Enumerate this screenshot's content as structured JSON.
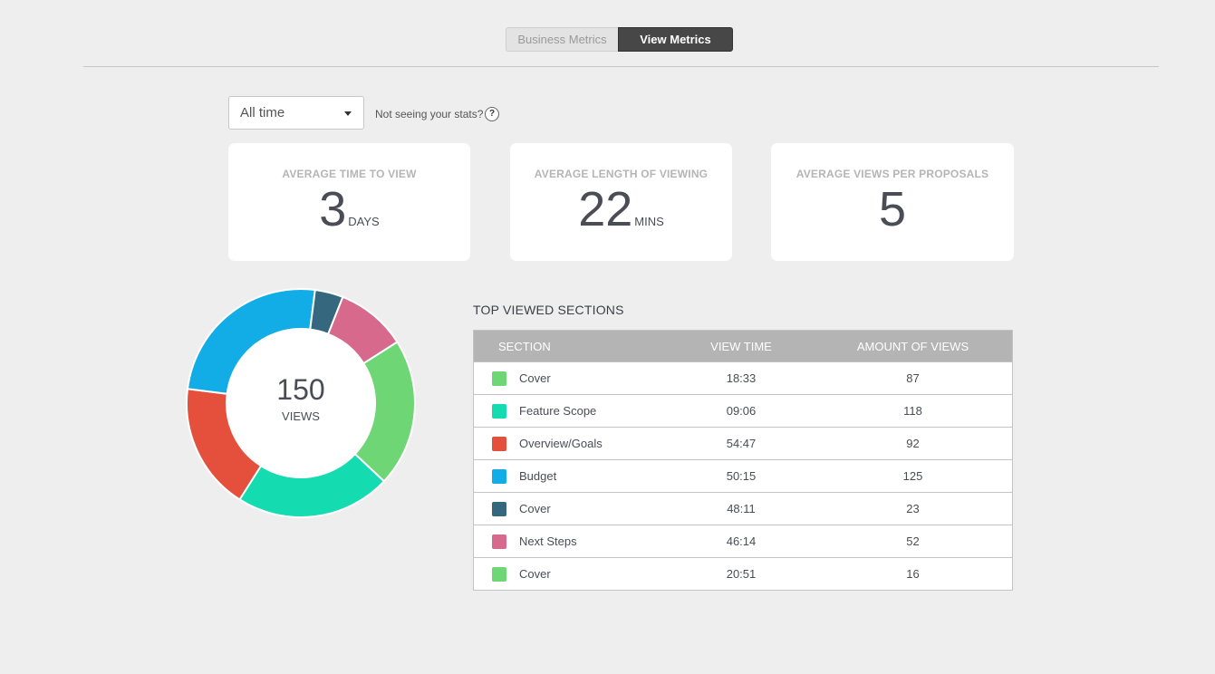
{
  "tabs": {
    "business_label": "Business Metrics",
    "view_label": "View Metrics",
    "active": "View Metrics"
  },
  "filter": {
    "selected": "All time",
    "help_text": "Not seeing your stats?",
    "help_icon": "?"
  },
  "cards": [
    {
      "label": "AVERAGE TIME TO VIEW",
      "value": "3",
      "unit": "DAYS"
    },
    {
      "label": "AVERAGE LENGTH OF VIEWING",
      "value": "22",
      "unit": "MINS"
    },
    {
      "label": "AVERAGE VIEWS PER PROPOSALS",
      "value": "5",
      "unit": ""
    }
  ],
  "donut": {
    "total": "150",
    "label": "VIEWS"
  },
  "table": {
    "title": "TOP VIEWED SECTIONS",
    "headers": [
      "SECTION",
      "VIEW TIME",
      "AMOUNT OF VIEWS"
    ],
    "rows": [
      {
        "section": "Cover",
        "view_time": "18:33",
        "views": "87",
        "color": "#6fd675"
      },
      {
        "section": "Feature Scope",
        "view_time": "09:06",
        "views": "118",
        "color": "#14dcb0"
      },
      {
        "section": "Overview/Goals",
        "view_time": "54:47",
        "views": "92",
        "color": "#e5503c"
      },
      {
        "section": "Budget",
        "view_time": "50:15",
        "views": "125",
        "color": "#12ade6"
      },
      {
        "section": "Cover",
        "view_time": "48:11",
        "views": "23",
        "color": "#35677f"
      },
      {
        "section": "Next Steps",
        "view_time": "46:14",
        "views": "52",
        "color": "#d6698c"
      },
      {
        "section": "Cover",
        "view_time": "20:51",
        "views": "16",
        "color": "#6fd675"
      }
    ]
  },
  "chart_data": {
    "type": "pie",
    "segments": [
      {
        "color": "#6fd675",
        "percent": 21
      },
      {
        "color": "#14dcb0",
        "percent": 22
      },
      {
        "color": "#e5503c",
        "percent": 18
      },
      {
        "color": "#12ade6",
        "percent": 25
      },
      {
        "color": "#35677f",
        "percent": 4
      },
      {
        "color": "#d6698c",
        "percent": 10
      }
    ]
  }
}
